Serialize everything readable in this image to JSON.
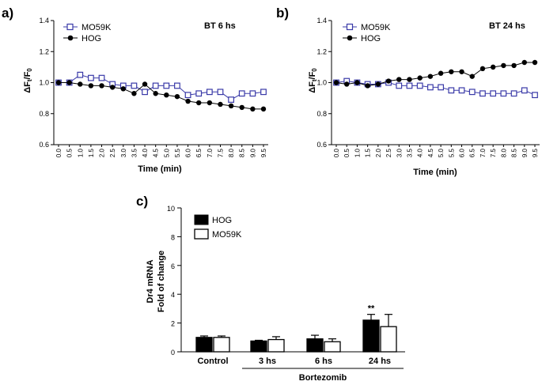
{
  "panel_labels": [
    "a)",
    "b)",
    "c)"
  ],
  "chart_data": [
    {
      "type": "line",
      "panel": "a",
      "annotation": "BT 6 hs",
      "ylabel": "ΔFt/F0",
      "ylabel_parts": {
        "main": "ΔF",
        "sub1": "t",
        "slash": "/F",
        "sub2": "0"
      },
      "xlabel": "Time (min)",
      "ylim": [
        0.6,
        1.4
      ],
      "yticks": [
        "0.6",
        "0.8",
        "1.0",
        "1.2",
        "1.4"
      ],
      "x": [
        "0.0",
        "0.5",
        "1.0",
        "1.5",
        "2.0",
        "2.5",
        "3.0",
        "3.5",
        "4.0",
        "4.5",
        "5.0",
        "5.5",
        "6.0",
        "6.5",
        "7.0",
        "7.5",
        "8.0",
        "8.5",
        "9.0",
        "9.5"
      ],
      "series": [
        {
          "name": "MO59K",
          "marker": "open-square",
          "color": "#3a3aa8",
          "values": [
            1.0,
            1.0,
            1.05,
            1.03,
            1.03,
            0.99,
            0.98,
            0.98,
            0.94,
            0.98,
            0.98,
            0.98,
            0.92,
            0.93,
            0.94,
            0.94,
            0.89,
            0.93,
            0.93,
            0.94
          ]
        },
        {
          "name": "HOG",
          "marker": "filled-circle",
          "color": "#000000",
          "values": [
            1.0,
            1.0,
            0.99,
            0.98,
            0.98,
            0.97,
            0.96,
            0.93,
            0.99,
            0.93,
            0.92,
            0.91,
            0.88,
            0.87,
            0.87,
            0.86,
            0.85,
            0.84,
            0.83,
            0.83
          ]
        }
      ]
    },
    {
      "type": "line",
      "panel": "b",
      "annotation": "BT 24 hs",
      "ylabel": "ΔFt/F0",
      "ylabel_parts": {
        "main": "ΔF",
        "sub1": "t",
        "slash": "/F",
        "sub2": "0"
      },
      "xlabel": "Time (min)",
      "ylim": [
        0.6,
        1.4
      ],
      "yticks": [
        "0.6",
        "0.8",
        "1.0",
        "1.2",
        "1.4"
      ],
      "x": [
        "0.0",
        "0.5",
        "1.0",
        "1.5",
        "2.0",
        "2.5",
        "3.0",
        "3.5",
        "4.0",
        "4.5",
        "5.0",
        "5.5",
        "6.0",
        "6.5",
        "7.0",
        "7.5",
        "8.0",
        "8.5",
        "9.0",
        "9.5"
      ],
      "series": [
        {
          "name": "MO59K",
          "marker": "open-square",
          "color": "#3a3aa8",
          "values": [
            1.0,
            1.01,
            1.0,
            0.99,
            0.99,
            1.0,
            0.98,
            0.98,
            0.98,
            0.97,
            0.97,
            0.95,
            0.95,
            0.94,
            0.93,
            0.93,
            0.93,
            0.93,
            0.95,
            0.92
          ]
        },
        {
          "name": "HOG",
          "marker": "filled-circle",
          "color": "#000000",
          "values": [
            1.0,
            0.99,
            1.0,
            0.98,
            0.99,
            1.01,
            1.02,
            1.02,
            1.03,
            1.04,
            1.06,
            1.07,
            1.07,
            1.04,
            1.09,
            1.1,
            1.11,
            1.11,
            1.13,
            1.13
          ]
        }
      ]
    },
    {
      "type": "bar",
      "panel": "c",
      "ylabel_lines": [
        "Dr4 mRNA",
        "Fold of change"
      ],
      "ylim": [
        0,
        10
      ],
      "yticks": [
        "0",
        "2",
        "4",
        "6",
        "8",
        "10"
      ],
      "categories": [
        "Control",
        "3 hs",
        "6 hs",
        "24 hs"
      ],
      "group_label": "Bortezomib",
      "series": [
        {
          "name": "HOG",
          "fill": "#000000",
          "values": [
            1.0,
            0.75,
            0.9,
            2.2
          ],
          "errors": [
            0.1,
            0.05,
            0.25,
            0.4
          ]
        },
        {
          "name": "MO59K",
          "fill": "#ffffff",
          "values": [
            1.0,
            0.85,
            0.7,
            1.75
          ],
          "errors": [
            0.1,
            0.2,
            0.2,
            0.85
          ]
        }
      ],
      "significance": [
        {
          "category": "24 hs",
          "series": "HOG",
          "label": "**"
        }
      ]
    }
  ]
}
